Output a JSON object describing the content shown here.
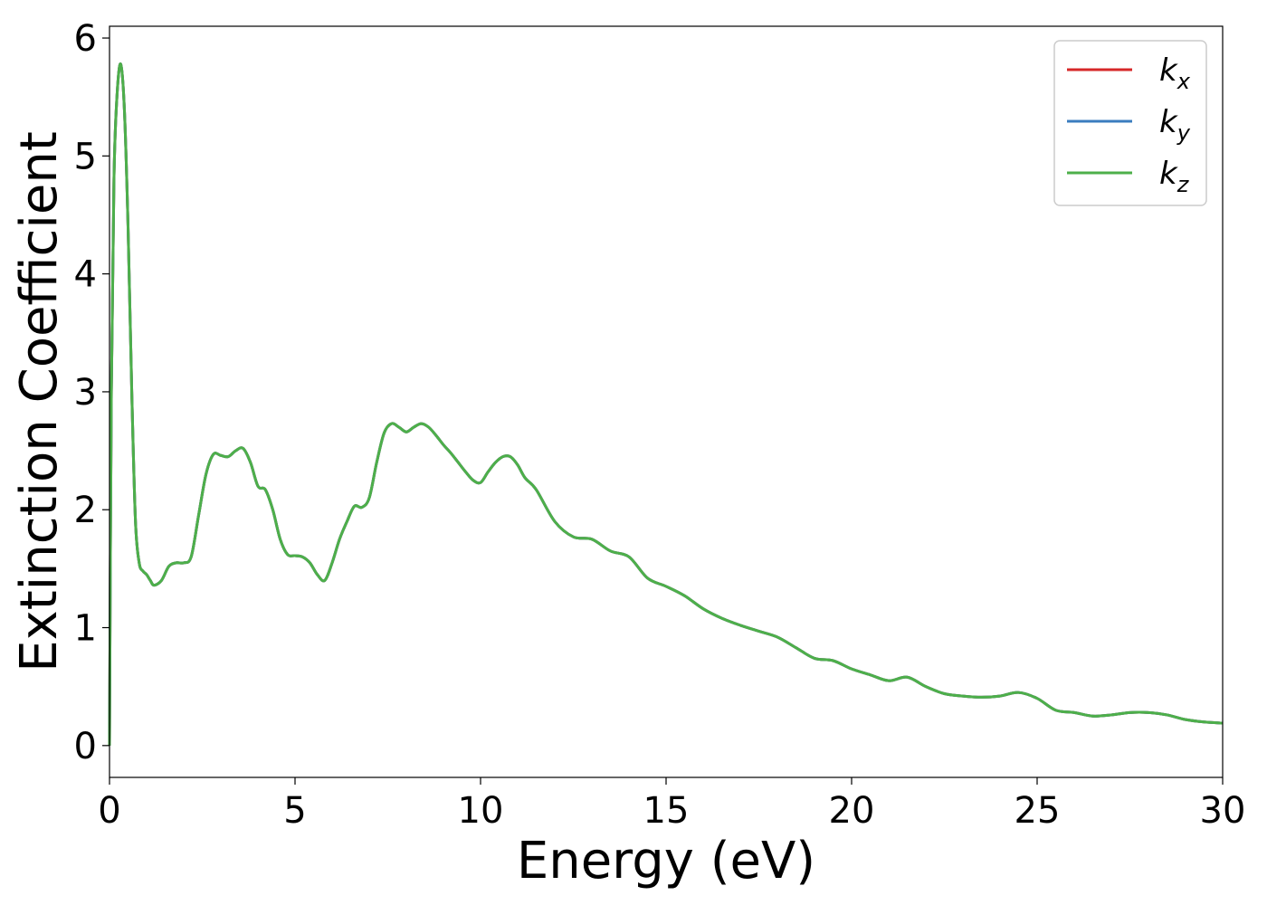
{
  "chart_data": {
    "type": "line",
    "title": "",
    "xlabel": "Energy (eV)",
    "ylabel": "Extinction Coefficient",
    "xlim": [
      0,
      30
    ],
    "ylim": [
      -0.27,
      6.1
    ],
    "xticks": [
      0,
      5,
      10,
      15,
      20,
      25,
      30
    ],
    "yticks": [
      0,
      1,
      2,
      3,
      4,
      5,
      6
    ],
    "grid": false,
    "legend_position": "top-right",
    "series": [
      {
        "name": "k_x",
        "label_base": "k",
        "label_sub": "x",
        "color": "#d62728",
        "x": [
          0,
          0.05,
          0.12,
          0.2,
          0.3,
          0.4,
          0.5,
          0.6,
          0.7,
          0.8,
          0.9,
          1.0,
          1.1,
          1.2,
          1.4,
          1.6,
          1.8,
          2.0,
          2.2,
          2.4,
          2.6,
          2.8,
          3.0,
          3.2,
          3.4,
          3.6,
          3.8,
          4.0,
          4.2,
          4.4,
          4.6,
          4.8,
          5.0,
          5.2,
          5.4,
          5.6,
          5.8,
          6.0,
          6.2,
          6.4,
          6.6,
          6.8,
          7.0,
          7.2,
          7.4,
          7.6,
          7.8,
          8.0,
          8.2,
          8.4,
          8.6,
          8.8,
          9.0,
          9.2,
          9.4,
          9.6,
          9.8,
          10.0,
          10.2,
          10.4,
          10.6,
          10.8,
          11.0,
          11.2,
          11.5,
          12.0,
          12.5,
          13.0,
          13.5,
          14.0,
          14.5,
          15.0,
          15.5,
          16.0,
          16.5,
          17.0,
          17.5,
          18.0,
          18.5,
          19.0,
          19.5,
          20.0,
          20.5,
          21.0,
          21.5,
          22.0,
          22.5,
          23.0,
          23.5,
          24.0,
          24.5,
          25.0,
          25.5,
          26.0,
          26.5,
          27.0,
          27.5,
          28.0,
          28.5,
          29.0,
          29.5,
          30.0
        ],
        "y": [
          0.0,
          3.0,
          4.8,
          5.5,
          5.78,
          5.4,
          4.4,
          3.0,
          1.9,
          1.55,
          1.48,
          1.45,
          1.4,
          1.36,
          1.4,
          1.52,
          1.55,
          1.55,
          1.6,
          1.95,
          2.3,
          2.47,
          2.46,
          2.45,
          2.5,
          2.52,
          2.4,
          2.2,
          2.17,
          2.0,
          1.75,
          1.62,
          1.61,
          1.6,
          1.55,
          1.45,
          1.4,
          1.55,
          1.75,
          1.9,
          2.03,
          2.02,
          2.1,
          2.4,
          2.65,
          2.73,
          2.7,
          2.66,
          2.7,
          2.73,
          2.7,
          2.63,
          2.55,
          2.48,
          2.4,
          2.32,
          2.25,
          2.23,
          2.32,
          2.4,
          2.45,
          2.45,
          2.38,
          2.27,
          2.17,
          1.9,
          1.77,
          1.75,
          1.65,
          1.6,
          1.42,
          1.35,
          1.27,
          1.16,
          1.08,
          1.02,
          0.97,
          0.92,
          0.83,
          0.74,
          0.72,
          0.65,
          0.6,
          0.55,
          0.58,
          0.5,
          0.44,
          0.42,
          0.41,
          0.42,
          0.45,
          0.4,
          0.3,
          0.28,
          0.25,
          0.26,
          0.28,
          0.28,
          0.26,
          0.22,
          0.2,
          0.19
        ]
      },
      {
        "name": "k_y",
        "label_base": "k",
        "label_sub": "y",
        "color": "#3b7dbf",
        "x": [
          0,
          0.05,
          0.12,
          0.2,
          0.3,
          0.4,
          0.5,
          0.6,
          0.7,
          0.8,
          0.9,
          1.0,
          1.1,
          1.2,
          1.4,
          1.6,
          1.8,
          2.0,
          2.2,
          2.4,
          2.6,
          2.8,
          3.0,
          3.2,
          3.4,
          3.6,
          3.8,
          4.0,
          4.2,
          4.4,
          4.6,
          4.8,
          5.0,
          5.2,
          5.4,
          5.6,
          5.8,
          6.0,
          6.2,
          6.4,
          6.6,
          6.8,
          7.0,
          7.2,
          7.4,
          7.6,
          7.8,
          8.0,
          8.2,
          8.4,
          8.6,
          8.8,
          9.0,
          9.2,
          9.4,
          9.6,
          9.8,
          10.0,
          10.2,
          10.4,
          10.6,
          10.8,
          11.0,
          11.2,
          11.5,
          12.0,
          12.5,
          13.0,
          13.5,
          14.0,
          14.5,
          15.0,
          15.5,
          16.0,
          16.5,
          17.0,
          17.5,
          18.0,
          18.5,
          19.0,
          19.5,
          20.0,
          20.5,
          21.0,
          21.5,
          22.0,
          22.5,
          23.0,
          23.5,
          24.0,
          24.5,
          25.0,
          25.5,
          26.0,
          26.5,
          27.0,
          27.5,
          28.0,
          28.5,
          29.0,
          29.5,
          30.0
        ],
        "y": [
          0.0,
          3.0,
          4.8,
          5.5,
          5.78,
          5.4,
          4.4,
          3.0,
          1.9,
          1.55,
          1.48,
          1.45,
          1.4,
          1.36,
          1.4,
          1.52,
          1.55,
          1.55,
          1.6,
          1.95,
          2.3,
          2.47,
          2.46,
          2.45,
          2.5,
          2.52,
          2.4,
          2.2,
          2.17,
          2.0,
          1.75,
          1.62,
          1.61,
          1.6,
          1.55,
          1.45,
          1.4,
          1.55,
          1.75,
          1.9,
          2.03,
          2.02,
          2.1,
          2.4,
          2.65,
          2.73,
          2.7,
          2.66,
          2.7,
          2.73,
          2.7,
          2.63,
          2.55,
          2.48,
          2.4,
          2.32,
          2.25,
          2.23,
          2.32,
          2.4,
          2.45,
          2.45,
          2.38,
          2.27,
          2.17,
          1.9,
          1.77,
          1.75,
          1.65,
          1.6,
          1.42,
          1.35,
          1.27,
          1.16,
          1.08,
          1.02,
          0.97,
          0.92,
          0.83,
          0.74,
          0.72,
          0.65,
          0.6,
          0.55,
          0.58,
          0.5,
          0.44,
          0.42,
          0.41,
          0.42,
          0.45,
          0.4,
          0.3,
          0.28,
          0.25,
          0.26,
          0.28,
          0.28,
          0.26,
          0.22,
          0.2,
          0.19
        ]
      },
      {
        "name": "k_z",
        "label_base": "k",
        "label_sub": "z",
        "color": "#4daf4a",
        "x": [
          0,
          0.05,
          0.12,
          0.2,
          0.3,
          0.4,
          0.5,
          0.6,
          0.7,
          0.8,
          0.9,
          1.0,
          1.1,
          1.2,
          1.4,
          1.6,
          1.8,
          2.0,
          2.2,
          2.4,
          2.6,
          2.8,
          3.0,
          3.2,
          3.4,
          3.6,
          3.8,
          4.0,
          4.2,
          4.4,
          4.6,
          4.8,
          5.0,
          5.2,
          5.4,
          5.6,
          5.8,
          6.0,
          6.2,
          6.4,
          6.6,
          6.8,
          7.0,
          7.2,
          7.4,
          7.6,
          7.8,
          8.0,
          8.2,
          8.4,
          8.6,
          8.8,
          9.0,
          9.2,
          9.4,
          9.6,
          9.8,
          10.0,
          10.2,
          10.4,
          10.6,
          10.8,
          11.0,
          11.2,
          11.5,
          12.0,
          12.5,
          13.0,
          13.5,
          14.0,
          14.5,
          15.0,
          15.5,
          16.0,
          16.5,
          17.0,
          17.5,
          18.0,
          18.5,
          19.0,
          19.5,
          20.0,
          20.5,
          21.0,
          21.5,
          22.0,
          22.5,
          23.0,
          23.5,
          24.0,
          24.5,
          25.0,
          25.5,
          26.0,
          26.5,
          27.0,
          27.5,
          28.0,
          28.5,
          29.0,
          29.5,
          30.0
        ],
        "y": [
          0.0,
          3.0,
          4.8,
          5.5,
          5.78,
          5.4,
          4.4,
          3.0,
          1.9,
          1.55,
          1.48,
          1.45,
          1.4,
          1.36,
          1.4,
          1.52,
          1.55,
          1.55,
          1.6,
          1.95,
          2.3,
          2.47,
          2.46,
          2.45,
          2.5,
          2.52,
          2.4,
          2.2,
          2.17,
          2.0,
          1.75,
          1.62,
          1.61,
          1.6,
          1.55,
          1.45,
          1.4,
          1.55,
          1.75,
          1.9,
          2.03,
          2.02,
          2.1,
          2.4,
          2.65,
          2.73,
          2.7,
          2.66,
          2.7,
          2.73,
          2.7,
          2.63,
          2.55,
          2.48,
          2.4,
          2.32,
          2.25,
          2.23,
          2.32,
          2.4,
          2.45,
          2.45,
          2.38,
          2.27,
          2.17,
          1.9,
          1.77,
          1.75,
          1.65,
          1.6,
          1.42,
          1.35,
          1.27,
          1.16,
          1.08,
          1.02,
          0.97,
          0.92,
          0.83,
          0.74,
          0.72,
          0.65,
          0.6,
          0.55,
          0.58,
          0.5,
          0.44,
          0.42,
          0.41,
          0.42,
          0.45,
          0.4,
          0.3,
          0.28,
          0.25,
          0.26,
          0.28,
          0.28,
          0.26,
          0.22,
          0.2,
          0.19
        ]
      }
    ]
  }
}
